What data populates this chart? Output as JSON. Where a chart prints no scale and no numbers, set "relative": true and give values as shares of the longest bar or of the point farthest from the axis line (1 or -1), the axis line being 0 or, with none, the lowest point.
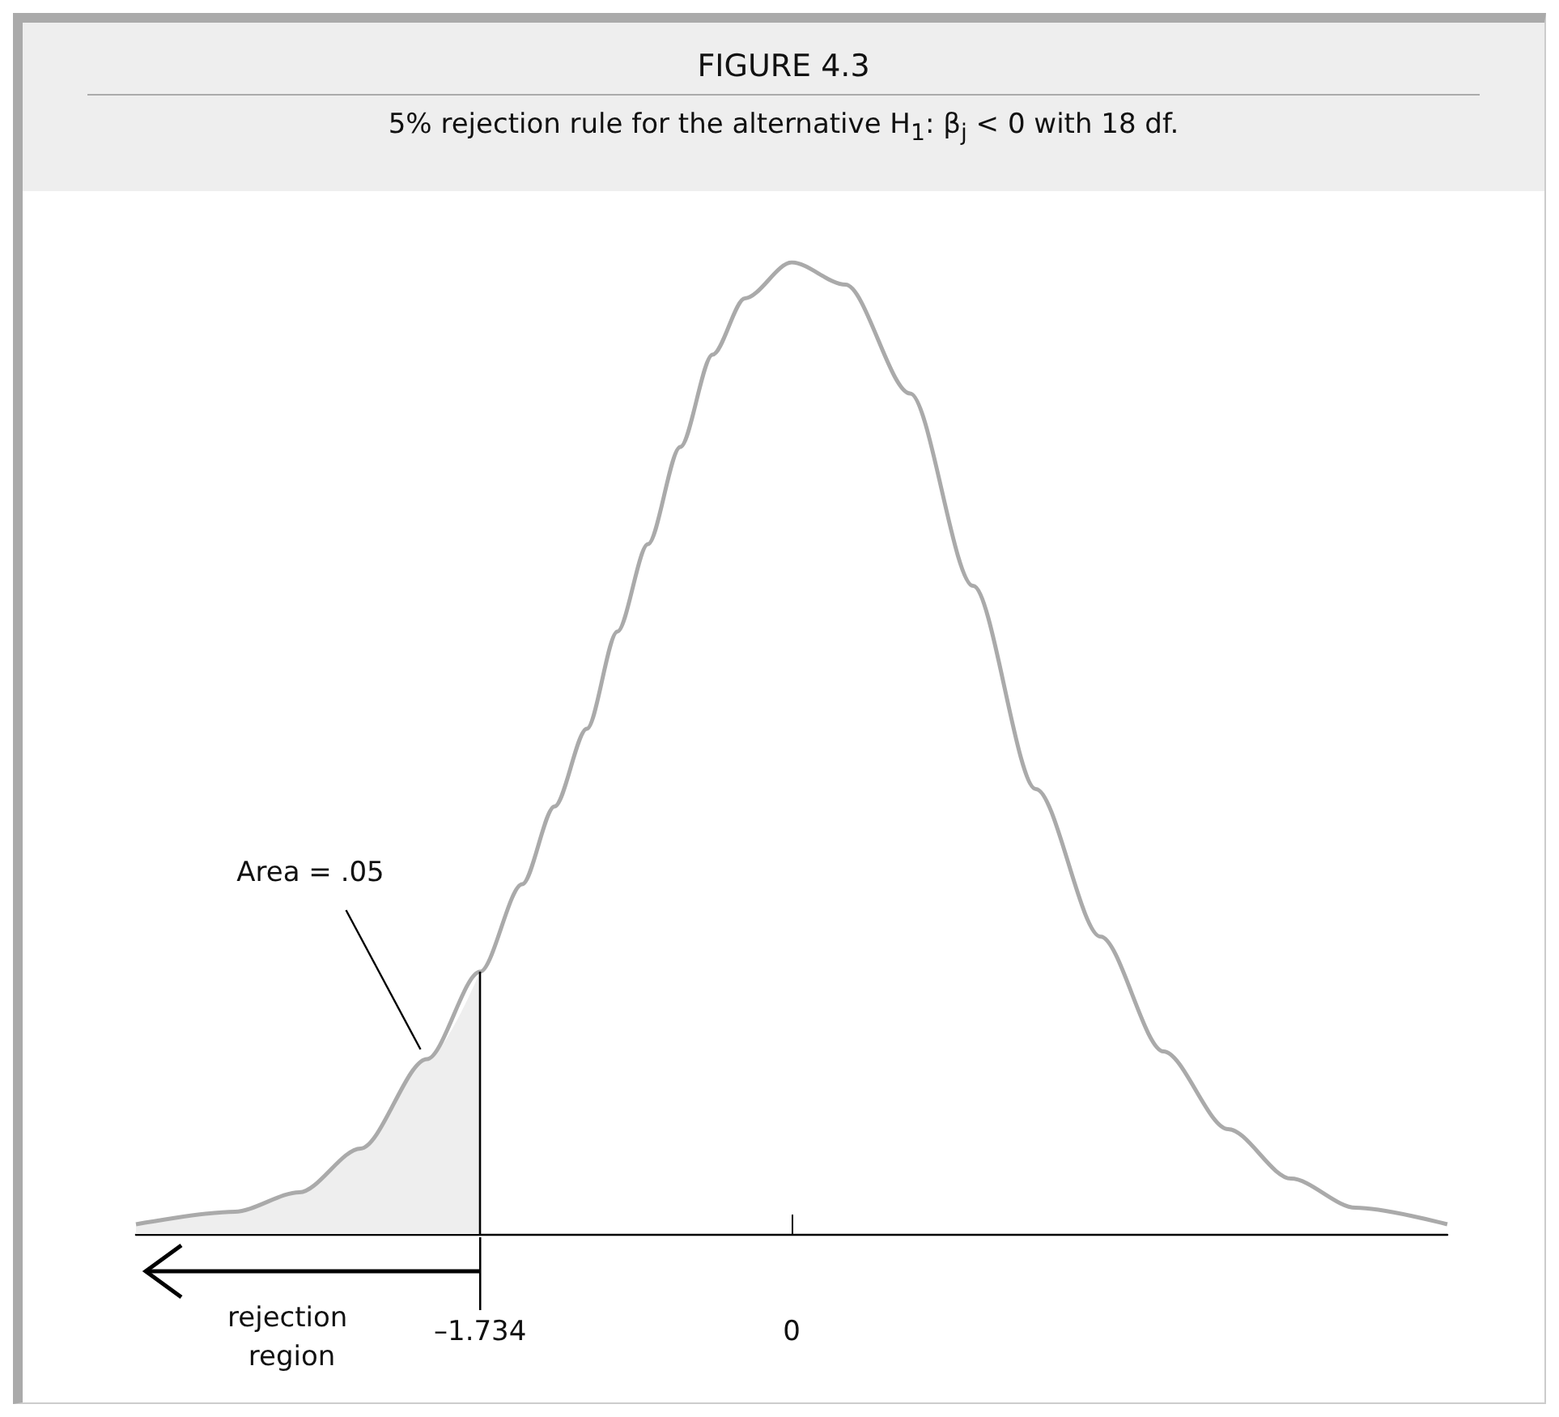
{
  "chart_data": {
    "type": "line",
    "title": "FIGURE 4.3",
    "subtitle": "5% rejection rule for the alternative H$_{1}$: β$_{j}$ < 0 with 18 df.",
    "relative": true,
    "xlim": [
      -3.65,
      3.65
    ],
    "xticks": [
      {
        "value": -1.734,
        "label": "–1.734"
      },
      0
    ],
    "series": [
      {
        "color": "#aaaaaa",
        "x": [
          -3.65,
          -3.1,
          -2.74,
          -2.4,
          -2.03,
          -1.734,
          -1.5,
          -1.32,
          -1.14,
          -0.97,
          -0.8,
          -0.62,
          -0.44,
          -0.26,
          0,
          0.3,
          0.66,
          1.01,
          1.36,
          1.72,
          2.07,
          2.43,
          2.78,
          3.14,
          3.65
        ],
        "values": [
          0.01,
          0.023,
          0.043,
          0.088,
          0.18,
          0.27,
          0.36,
          0.44,
          0.52,
          0.62,
          0.71,
          0.81,
          0.905,
          0.963,
          1,
          0.977,
          0.865,
          0.667,
          0.458,
          0.306,
          0.188,
          0.108,
          0.057,
          0.027,
          0.01
        ]
      },
      {
        "type": "area",
        "color": "#eeeeee",
        "x": [
          -3.65,
          -3.1,
          -2.74,
          -2.4,
          -2.03,
          -1.734
        ],
        "values": [
          0.01,
          0.023,
          0.043,
          0.088,
          0.18,
          0.27
        ]
      }
    ],
    "ref_lines": [
      {
        "axis": "x",
        "value": -1.734,
        "color": "#000000"
      }
    ],
    "annotations": [
      "Area = .05",
      "rejection region"
    ]
  }
}
